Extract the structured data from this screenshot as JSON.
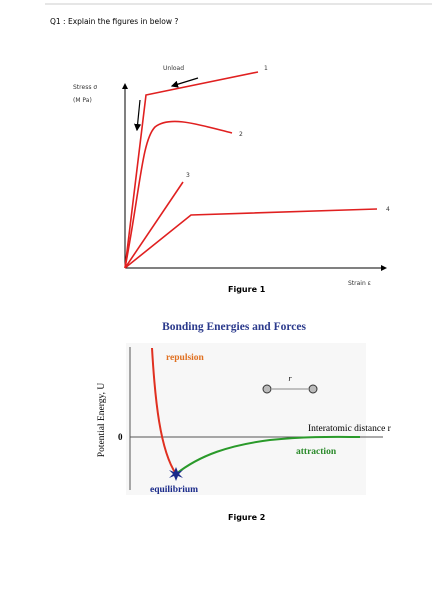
{
  "question": "Q1 : Explain the figures in below ?",
  "figure1": {
    "unload": "Unload",
    "stress_label": "Stress σ",
    "stress_unit": "(M Pa)",
    "strain_label": "Strain ε",
    "curve_labels": [
      "1",
      "2",
      "3",
      "4"
    ],
    "caption": "Figure 1"
  },
  "figure2": {
    "title": "Bonding Energies and Forces",
    "repulsion": "repulsion",
    "r": "r",
    "distance_label": "Interatomic distance r",
    "attraction": "attraction",
    "zero": "0",
    "y_label": "Potential Energy, U",
    "equilibrium": "equilibrium",
    "caption": "Figure 2"
  }
}
